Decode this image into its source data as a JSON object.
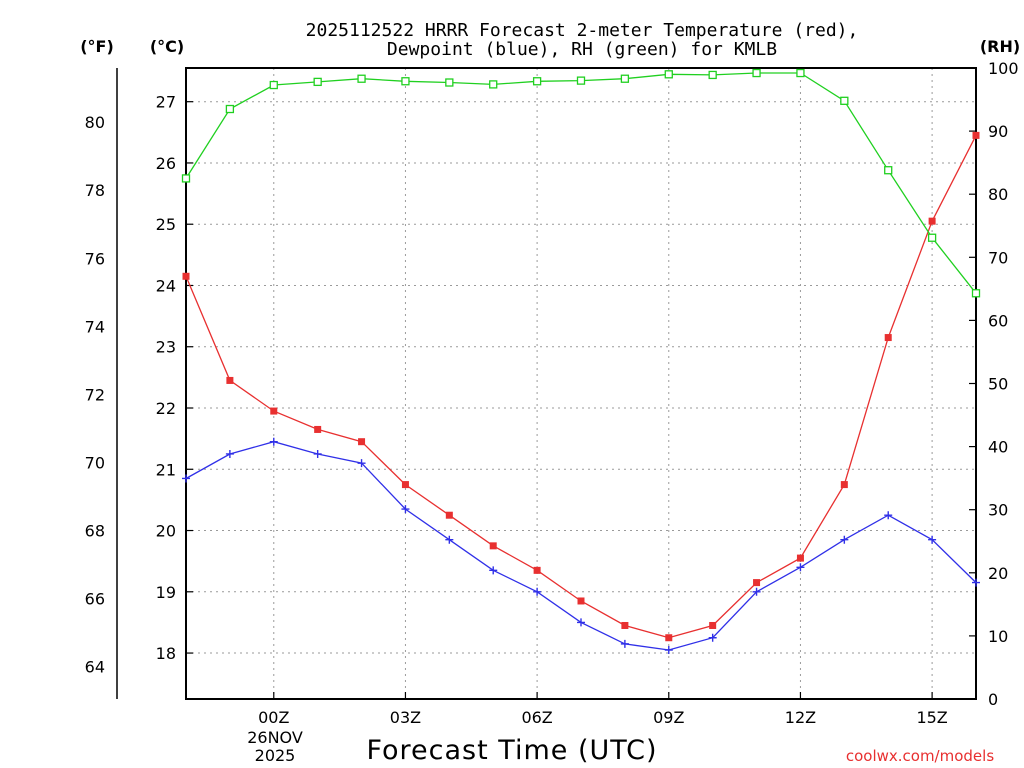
{
  "chart_data": {
    "type": "line",
    "title_line1": "2025112522 HRRR Forecast 2-meter Temperature (red),",
    "title_line2": "Dewpoint (blue), RH (green) for KMLB",
    "xlabel": "Forecast Time (UTC)",
    "date_line1": "26NOV",
    "date_line2": "2025",
    "watermark": "coolwx.com/models",
    "units": {
      "fahrenheit": "(°F)",
      "celsius": "(°C)",
      "rh": "(RH)"
    },
    "x": [
      -2,
      -1,
      0,
      1,
      2,
      3,
      4,
      5,
      6,
      7,
      8,
      9,
      10,
      11,
      12,
      13,
      14,
      15,
      16
    ],
    "xlim": [
      -2,
      16
    ],
    "x_ticks": [
      {
        "x": 0,
        "label": "00Z"
      },
      {
        "x": 3,
        "label": "03Z"
      },
      {
        "x": 6,
        "label": "06Z"
      },
      {
        "x": 9,
        "label": "09Z"
      },
      {
        "x": 12,
        "label": "12Z"
      },
      {
        "x": 15,
        "label": "15Z"
      }
    ],
    "celsius_axis": {
      "lim": [
        17.25,
        27.55
      ],
      "ticks": [
        18,
        19,
        20,
        21,
        22,
        23,
        24,
        25,
        26,
        27
      ]
    },
    "fahrenheit_axis": {
      "ticks": [
        64,
        66,
        68,
        70,
        72,
        74,
        76,
        78,
        80
      ]
    },
    "rh_axis": {
      "lim": [
        0,
        100
      ],
      "ticks": [
        0,
        10,
        20,
        30,
        40,
        50,
        60,
        70,
        80,
        90,
        100
      ]
    },
    "series": [
      {
        "name": "Temperature",
        "axis": "celsius",
        "color": "#e83030",
        "marker": "filled-square",
        "values": [
          24.15,
          22.45,
          21.95,
          21.65,
          21.45,
          20.75,
          20.25,
          19.75,
          19.35,
          18.85,
          18.45,
          18.25,
          18.45,
          19.15,
          19.55,
          20.75,
          23.15,
          25.05,
          26.45
        ]
      },
      {
        "name": "Dewpoint",
        "axis": "celsius",
        "color": "#3030e8",
        "marker": "plus",
        "values": [
          20.85,
          21.25,
          21.45,
          21.25,
          21.1,
          20.35,
          19.85,
          19.35,
          19.0,
          18.5,
          18.15,
          18.05,
          18.25,
          19.0,
          19.4,
          19.85,
          20.25,
          19.85,
          19.15
        ]
      },
      {
        "name": "RH",
        "axis": "rh",
        "color": "#20d020",
        "marker": "open-square",
        "values": [
          82.5,
          93.5,
          97.3,
          97.8,
          98.3,
          97.9,
          97.7,
          97.4,
          97.9,
          98.0,
          98.3,
          99.0,
          98.9,
          99.2,
          99.2,
          94.8,
          83.8,
          73.1,
          64.3
        ]
      }
    ]
  }
}
